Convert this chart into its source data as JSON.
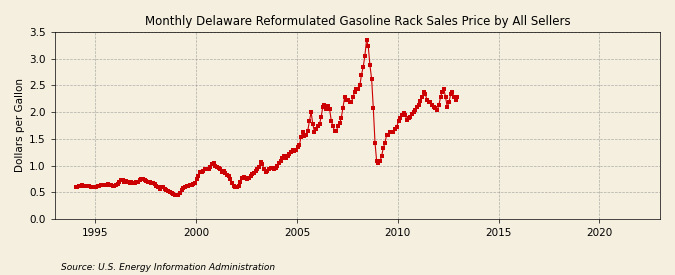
{
  "title": "Monthly Delaware Reformulated Gasoline Rack Sales Price by All Sellers",
  "ylabel": "Dollars per Gallon",
  "source": "Source: U.S. Energy Information Administration",
  "background_color": "#f5efe0",
  "plot_bg_color": "#f5efe0",
  "marker_color": "#cc0000",
  "marker": "s",
  "markersize": 2.8,
  "xlim_start": 1993,
  "xlim_end": 2023,
  "ylim": [
    0.0,
    3.5
  ],
  "yticks": [
    0.0,
    0.5,
    1.0,
    1.5,
    2.0,
    2.5,
    3.0,
    3.5
  ],
  "data": [
    [
      1994,
      1,
      0.59
    ],
    [
      1994,
      2,
      0.6
    ],
    [
      1994,
      3,
      0.61
    ],
    [
      1994,
      4,
      0.62
    ],
    [
      1994,
      5,
      0.63
    ],
    [
      1994,
      6,
      0.61
    ],
    [
      1994,
      7,
      0.61
    ],
    [
      1994,
      8,
      0.62
    ],
    [
      1994,
      9,
      0.61
    ],
    [
      1994,
      10,
      0.6
    ],
    [
      1994,
      11,
      0.59
    ],
    [
      1994,
      12,
      0.59
    ],
    [
      1995,
      1,
      0.6
    ],
    [
      1995,
      2,
      0.61
    ],
    [
      1995,
      3,
      0.62
    ],
    [
      1995,
      4,
      0.63
    ],
    [
      1995,
      5,
      0.64
    ],
    [
      1995,
      6,
      0.63
    ],
    [
      1995,
      7,
      0.64
    ],
    [
      1995,
      8,
      0.65
    ],
    [
      1995,
      9,
      0.64
    ],
    [
      1995,
      10,
      0.63
    ],
    [
      1995,
      11,
      0.61
    ],
    [
      1995,
      12,
      0.61
    ],
    [
      1996,
      1,
      0.63
    ],
    [
      1996,
      2,
      0.66
    ],
    [
      1996,
      3,
      0.7
    ],
    [
      1996,
      4,
      0.72
    ],
    [
      1996,
      5,
      0.72
    ],
    [
      1996,
      6,
      0.7
    ],
    [
      1996,
      7,
      0.71
    ],
    [
      1996,
      8,
      0.7
    ],
    [
      1996,
      9,
      0.68
    ],
    [
      1996,
      10,
      0.69
    ],
    [
      1996,
      11,
      0.68
    ],
    [
      1996,
      12,
      0.67
    ],
    [
      1997,
      1,
      0.69
    ],
    [
      1997,
      2,
      0.7
    ],
    [
      1997,
      3,
      0.72
    ],
    [
      1997,
      4,
      0.74
    ],
    [
      1997,
      5,
      0.74
    ],
    [
      1997,
      6,
      0.72
    ],
    [
      1997,
      7,
      0.71
    ],
    [
      1997,
      8,
      0.7
    ],
    [
      1997,
      9,
      0.69
    ],
    [
      1997,
      10,
      0.68
    ],
    [
      1997,
      11,
      0.67
    ],
    [
      1997,
      12,
      0.65
    ],
    [
      1998,
      1,
      0.62
    ],
    [
      1998,
      2,
      0.59
    ],
    [
      1998,
      3,
      0.57
    ],
    [
      1998,
      4,
      0.59
    ],
    [
      1998,
      5,
      0.59
    ],
    [
      1998,
      6,
      0.56
    ],
    [
      1998,
      7,
      0.54
    ],
    [
      1998,
      8,
      0.52
    ],
    [
      1998,
      9,
      0.5
    ],
    [
      1998,
      10,
      0.48
    ],
    [
      1998,
      11,
      0.46
    ],
    [
      1998,
      12,
      0.44
    ],
    [
      1999,
      1,
      0.44
    ],
    [
      1999,
      2,
      0.44
    ],
    [
      1999,
      3,
      0.48
    ],
    [
      1999,
      4,
      0.55
    ],
    [
      1999,
      5,
      0.58
    ],
    [
      1999,
      6,
      0.6
    ],
    [
      1999,
      7,
      0.61
    ],
    [
      1999,
      8,
      0.62
    ],
    [
      1999,
      9,
      0.63
    ],
    [
      1999,
      10,
      0.64
    ],
    [
      1999,
      11,
      0.66
    ],
    [
      1999,
      12,
      0.68
    ],
    [
      2000,
      1,
      0.74
    ],
    [
      2000,
      2,
      0.8
    ],
    [
      2000,
      3,
      0.88
    ],
    [
      2000,
      4,
      0.88
    ],
    [
      2000,
      5,
      0.9
    ],
    [
      2000,
      6,
      0.93
    ],
    [
      2000,
      7,
      0.93
    ],
    [
      2000,
      8,
      0.94
    ],
    [
      2000,
      9,
      0.97
    ],
    [
      2000,
      10,
      1.02
    ],
    [
      2000,
      11,
      1.05
    ],
    [
      2000,
      12,
      1.0
    ],
    [
      2001,
      1,
      0.98
    ],
    [
      2001,
      2,
      0.96
    ],
    [
      2001,
      3,
      0.93
    ],
    [
      2001,
      4,
      0.88
    ],
    [
      2001,
      5,
      0.89
    ],
    [
      2001,
      6,
      0.86
    ],
    [
      2001,
      7,
      0.83
    ],
    [
      2001,
      8,
      0.81
    ],
    [
      2001,
      9,
      0.75
    ],
    [
      2001,
      10,
      0.67
    ],
    [
      2001,
      11,
      0.62
    ],
    [
      2001,
      12,
      0.59
    ],
    [
      2002,
      1,
      0.59
    ],
    [
      2002,
      2,
      0.62
    ],
    [
      2002,
      3,
      0.7
    ],
    [
      2002,
      4,
      0.76
    ],
    [
      2002,
      5,
      0.78
    ],
    [
      2002,
      6,
      0.76
    ],
    [
      2002,
      7,
      0.75
    ],
    [
      2002,
      8,
      0.77
    ],
    [
      2002,
      9,
      0.8
    ],
    [
      2002,
      10,
      0.84
    ],
    [
      2002,
      11,
      0.86
    ],
    [
      2002,
      12,
      0.89
    ],
    [
      2003,
      1,
      0.94
    ],
    [
      2003,
      2,
      0.98
    ],
    [
      2003,
      3,
      1.07
    ],
    [
      2003,
      4,
      1.02
    ],
    [
      2003,
      5,
      0.93
    ],
    [
      2003,
      6,
      0.88
    ],
    [
      2003,
      7,
      0.9
    ],
    [
      2003,
      8,
      0.94
    ],
    [
      2003,
      9,
      0.96
    ],
    [
      2003,
      10,
      0.96
    ],
    [
      2003,
      11,
      0.94
    ],
    [
      2003,
      12,
      0.96
    ],
    [
      2004,
      1,
      0.99
    ],
    [
      2004,
      2,
      1.04
    ],
    [
      2004,
      3,
      1.09
    ],
    [
      2004,
      4,
      1.14
    ],
    [
      2004,
      5,
      1.18
    ],
    [
      2004,
      6,
      1.14
    ],
    [
      2004,
      7,
      1.17
    ],
    [
      2004,
      8,
      1.22
    ],
    [
      2004,
      9,
      1.25
    ],
    [
      2004,
      10,
      1.3
    ],
    [
      2004,
      11,
      1.28
    ],
    [
      2004,
      12,
      1.3
    ],
    [
      2005,
      1,
      1.34
    ],
    [
      2005,
      2,
      1.38
    ],
    [
      2005,
      3,
      1.53
    ],
    [
      2005,
      4,
      1.62
    ],
    [
      2005,
      5,
      1.55
    ],
    [
      2005,
      6,
      1.58
    ],
    [
      2005,
      7,
      1.64
    ],
    [
      2005,
      8,
      1.83
    ],
    [
      2005,
      9,
      2.0
    ],
    [
      2005,
      10,
      1.78
    ],
    [
      2005,
      11,
      1.63
    ],
    [
      2005,
      12,
      1.68
    ],
    [
      2006,
      1,
      1.74
    ],
    [
      2006,
      2,
      1.78
    ],
    [
      2006,
      3,
      1.9
    ],
    [
      2006,
      4,
      2.1
    ],
    [
      2006,
      5,
      2.14
    ],
    [
      2006,
      6,
      2.05
    ],
    [
      2006,
      7,
      2.12
    ],
    [
      2006,
      8,
      2.06
    ],
    [
      2006,
      9,
      1.84
    ],
    [
      2006,
      10,
      1.74
    ],
    [
      2006,
      11,
      1.64
    ],
    [
      2006,
      12,
      1.64
    ],
    [
      2007,
      1,
      1.74
    ],
    [
      2007,
      2,
      1.79
    ],
    [
      2007,
      3,
      1.89
    ],
    [
      2007,
      4,
      2.08
    ],
    [
      2007,
      5,
      2.28
    ],
    [
      2007,
      6,
      2.23
    ],
    [
      2007,
      7,
      2.23
    ],
    [
      2007,
      8,
      2.19
    ],
    [
      2007,
      9,
      2.18
    ],
    [
      2007,
      10,
      2.29
    ],
    [
      2007,
      11,
      2.38
    ],
    [
      2007,
      12,
      2.44
    ],
    [
      2008,
      1,
      2.44
    ],
    [
      2008,
      2,
      2.5
    ],
    [
      2008,
      3,
      2.7
    ],
    [
      2008,
      4,
      2.84
    ],
    [
      2008,
      5,
      3.05
    ],
    [
      2008,
      6,
      3.35
    ],
    [
      2008,
      7,
      3.24
    ],
    [
      2008,
      8,
      2.88
    ],
    [
      2008,
      9,
      2.62
    ],
    [
      2008,
      10,
      2.08
    ],
    [
      2008,
      11,
      1.43
    ],
    [
      2008,
      12,
      1.08
    ],
    [
      2009,
      1,
      1.04
    ],
    [
      2009,
      2,
      1.08
    ],
    [
      2009,
      3,
      1.18
    ],
    [
      2009,
      4,
      1.33
    ],
    [
      2009,
      5,
      1.43
    ],
    [
      2009,
      6,
      1.58
    ],
    [
      2009,
      7,
      1.58
    ],
    [
      2009,
      8,
      1.63
    ],
    [
      2009,
      9,
      1.63
    ],
    [
      2009,
      10,
      1.63
    ],
    [
      2009,
      11,
      1.68
    ],
    [
      2009,
      12,
      1.73
    ],
    [
      2010,
      1,
      1.84
    ],
    [
      2010,
      2,
      1.89
    ],
    [
      2010,
      3,
      1.94
    ],
    [
      2010,
      4,
      1.99
    ],
    [
      2010,
      5,
      1.94
    ],
    [
      2010,
      6,
      1.86
    ],
    [
      2010,
      7,
      1.89
    ],
    [
      2010,
      8,
      1.9
    ],
    [
      2010,
      9,
      1.96
    ],
    [
      2010,
      10,
      2.01
    ],
    [
      2010,
      11,
      2.04
    ],
    [
      2010,
      12,
      2.09
    ],
    [
      2011,
      1,
      2.14
    ],
    [
      2011,
      2,
      2.2
    ],
    [
      2011,
      3,
      2.28
    ],
    [
      2011,
      4,
      2.38
    ],
    [
      2011,
      5,
      2.33
    ],
    [
      2011,
      6,
      2.23
    ],
    [
      2011,
      7,
      2.18
    ],
    [
      2011,
      8,
      2.18
    ],
    [
      2011,
      9,
      2.13
    ],
    [
      2011,
      10,
      2.1
    ],
    [
      2011,
      11,
      2.08
    ],
    [
      2011,
      12,
      2.03
    ],
    [
      2012,
      1,
      2.13
    ],
    [
      2012,
      2,
      2.28
    ],
    [
      2012,
      3,
      2.38
    ],
    [
      2012,
      4,
      2.43
    ],
    [
      2012,
      5,
      2.28
    ],
    [
      2012,
      6,
      2.1
    ],
    [
      2012,
      7,
      2.18
    ],
    [
      2012,
      8,
      2.33
    ],
    [
      2012,
      9,
      2.38
    ],
    [
      2012,
      10,
      2.28
    ],
    [
      2012,
      11,
      2.23
    ],
    [
      2012,
      12,
      2.28
    ]
  ]
}
